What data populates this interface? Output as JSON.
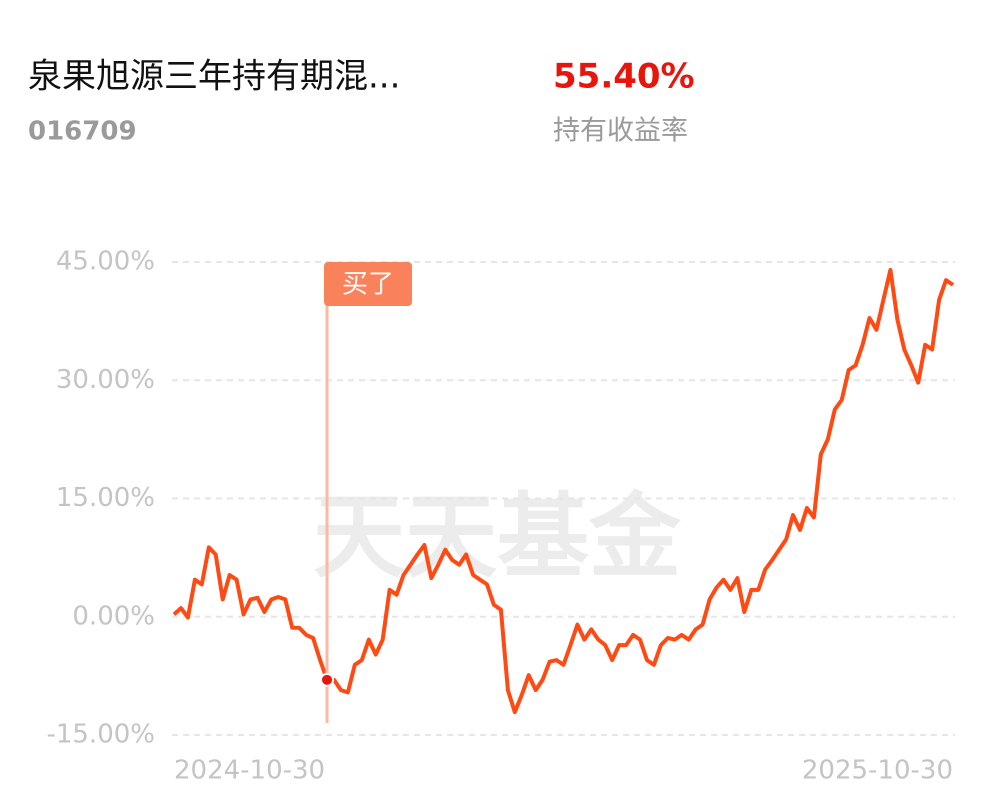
{
  "header": {
    "title": "泉果旭源三年持有期混...",
    "code": "016709",
    "return_value": "55.40%",
    "return_label": "持有收益率"
  },
  "chart_data": {
    "type": "line",
    "watermark": "天天基金",
    "categories": [
      "2024-10-30",
      null,
      null,
      null,
      null,
      null,
      null,
      null,
      null,
      null,
      null,
      null,
      null,
      null,
      null,
      null,
      null,
      null,
      null,
      null,
      null,
      null,
      null,
      null,
      null,
      null,
      null,
      null,
      null,
      null,
      null,
      null,
      null,
      null,
      null,
      null,
      null,
      null,
      null,
      null,
      null,
      null,
      null,
      null,
      null,
      null,
      null,
      null,
      null,
      null,
      null,
      null,
      null,
      null,
      null,
      null,
      null,
      null,
      null,
      null,
      null,
      null,
      null,
      null,
      null,
      null,
      null,
      null,
      null,
      null,
      null,
      null,
      null,
      null,
      null,
      null,
      null,
      null,
      null,
      null,
      null,
      null,
      null,
      null,
      null,
      null,
      null,
      null,
      null,
      null,
      null,
      null,
      null,
      null,
      null,
      null,
      null,
      null,
      null,
      null,
      null,
      null,
      null,
      null,
      null,
      null,
      null,
      null,
      null,
      null,
      null,
      null,
      "2025-10-30"
    ],
    "series": [
      {
        "name": null,
        "color": "#ff4a14",
        "values": [
          0.3,
          1.1,
          -0.1,
          4.7,
          4.1,
          8.8,
          7.9,
          2.2,
          5.3,
          4.7,
          0.3,
          2.2,
          2.4,
          0.6,
          2.2,
          2.5,
          2.2,
          -1.4,
          -1.4,
          -2.3,
          -2.7,
          -5.5,
          -8.0,
          -8.0,
          -9.3,
          -9.6,
          -6.1,
          -5.5,
          -2.9,
          -4.8,
          -2.9,
          3.4,
          2.8,
          5.3,
          6.6,
          7.9,
          9.1,
          4.9,
          6.6,
          8.5,
          7.2,
          6.6,
          7.9,
          5.3,
          4.7,
          4.1,
          1.5,
          0.9,
          -9.3,
          -12.1,
          -9.9,
          -7.4,
          -9.3,
          -8.0,
          -5.7,
          -5.5,
          -6.1,
          -3.6,
          -1.0,
          -2.9,
          -1.6,
          -2.9,
          -3.6,
          -5.5,
          -3.6,
          -3.6,
          -2.3,
          -2.9,
          -5.5,
          -6.1,
          -3.6,
          -2.7,
          -2.9,
          -2.3,
          -2.9,
          -1.6,
          -1.0,
          2.2,
          3.7,
          4.7,
          3.4,
          4.9,
          0.6,
          3.4,
          3.4,
          6.0,
          7.2,
          8.5,
          9.8,
          12.9,
          11.0,
          13.8,
          12.6,
          20.6,
          22.5,
          26.3,
          27.5,
          31.3,
          31.9,
          34.5,
          37.9,
          36.4,
          40.2,
          44.0,
          37.7,
          33.9,
          31.9,
          29.7,
          34.5,
          33.9,
          40.2,
          42.7,
          42.1
        ]
      },
      {
        "name": "买了",
        "color": "#f9825a",
        "values": [
          null,
          null,
          null,
          null,
          null,
          null,
          null,
          null,
          null,
          null,
          null,
          null,
          null,
          null,
          null,
          null,
          null,
          null,
          null,
          null,
          null,
          null,
          -8.0,
          null,
          null,
          null,
          null,
          null,
          null,
          null,
          null,
          null,
          null,
          null,
          null,
          null,
          null,
          null,
          null,
          null,
          null,
          null,
          null,
          null,
          null,
          null,
          null,
          null,
          null,
          null,
          null,
          null,
          null,
          null,
          null,
          null,
          null,
          null,
          null,
          null,
          null,
          null,
          null,
          null,
          null,
          null,
          null,
          null,
          null,
          null,
          null,
          null,
          null,
          null,
          null,
          null,
          null,
          null,
          null,
          null,
          null,
          null,
          null,
          null,
          null,
          null,
          null,
          null,
          null,
          null,
          null,
          null,
          null,
          null,
          null,
          null,
          null,
          null,
          null,
          null,
          null,
          null,
          null,
          null,
          null,
          null,
          null,
          null,
          null,
          null,
          null,
          null,
          null
        ]
      }
    ],
    "ylim": [
      -15,
      45
    ],
    "yticks": [
      {
        "value": 45,
        "label": "45.00%"
      },
      {
        "value": 30,
        "label": "30.00%"
      },
      {
        "value": 15,
        "label": "15.00%"
      },
      {
        "value": 0,
        "label": "0.00%"
      },
      {
        "value": -15,
        "label": "-15.00%"
      }
    ],
    "grid": true
  }
}
